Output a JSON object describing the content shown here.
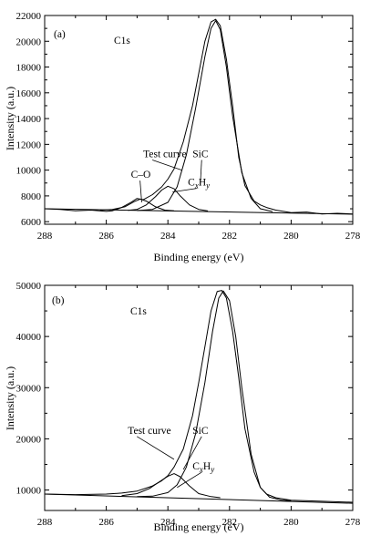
{
  "chart_data": [
    {
      "type": "line",
      "panel_label": "(a)",
      "spectrum_label": "C1s",
      "xlabel": "Binding energy (eV)",
      "ylabel": "Intensity (a.u.)",
      "xlim": [
        288,
        278
      ],
      "x_reversed": true,
      "ylim": [
        5800,
        22000
      ],
      "xticks": [
        288,
        286,
        284,
        282,
        280,
        278
      ],
      "yticks": [
        6000,
        8000,
        10000,
        12000,
        14000,
        16000,
        18000,
        20000,
        22000
      ],
      "grid": false,
      "annotations": [
        {
          "text": "Test curve",
          "x": 284.8,
          "y": 11000,
          "arrow_to": [
            283.55,
            10000
          ]
        },
        {
          "text": "SiC",
          "x": 283.2,
          "y": 11000,
          "arrow_to": [
            282.95,
            8800
          ]
        },
        {
          "text": "C–O",
          "x": 285.2,
          "y": 9400,
          "arrow_to": [
            284.85,
            7500
          ]
        },
        {
          "text": "C",
          "sub1": "x",
          "mid": "H",
          "sub2": "y",
          "x": 283.35,
          "y": 8800,
          "arrow_to": [
            283.85,
            8300
          ]
        }
      ],
      "series": [
        {
          "role": "test curve",
          "x": [
            288,
            287.5,
            287,
            286.5,
            286,
            285.8,
            285.5,
            285.2,
            285,
            284.8,
            284.5,
            284.2,
            284,
            283.8,
            283.5,
            283.2,
            283,
            282.8,
            282.6,
            282.45,
            282.3,
            282.1,
            281.9,
            281.7,
            281.5,
            281.2,
            281,
            280.8,
            280.5,
            280,
            279.5,
            279,
            278.5,
            278
          ],
          "y": [
            7000,
            6950,
            6850,
            6900,
            6800,
            6850,
            7100,
            7500,
            7800,
            7700,
            8100,
            8700,
            9300,
            10100,
            12200,
            15000,
            17500,
            20000,
            21500,
            21700,
            21200,
            18600,
            15000,
            11000,
            8800,
            7600,
            7300,
            7100,
            6900,
            6700,
            6750,
            6600,
            6650,
            6600
          ]
        },
        {
          "role": "baseline",
          "x": [
            288,
            278
          ],
          "y": [
            7000,
            6580
          ]
        },
        {
          "role": "C-O component",
          "x": [
            286.2,
            285.8,
            285.4,
            285.1,
            284.9,
            284.7,
            284.4,
            284.1,
            283.8
          ],
          "y": [
            6900,
            6950,
            7150,
            7550,
            7750,
            7600,
            7150,
            6900,
            6850
          ]
        },
        {
          "role": "CxHy component",
          "x": [
            285.3,
            285,
            284.7,
            284.4,
            284.2,
            284,
            283.8,
            283.6,
            283.3,
            283,
            282.7
          ],
          "y": [
            6880,
            6950,
            7300,
            7950,
            8450,
            8750,
            8550,
            8000,
            7300,
            6950,
            6830
          ]
        },
        {
          "role": "SiC component",
          "x": [
            285,
            284.5,
            284,
            283.7,
            283.4,
            283.1,
            282.8,
            282.6,
            282.45,
            282.3,
            282.1,
            281.9,
            281.6,
            281.3,
            281,
            280.6
          ],
          "y": [
            6860,
            6950,
            7500,
            8700,
            11200,
            14800,
            18800,
            21000,
            21600,
            20900,
            18000,
            14200,
            9800,
            7800,
            7000,
            6780
          ]
        }
      ]
    },
    {
      "type": "line",
      "panel_label": "(b)",
      "spectrum_label": "C1s",
      "xlabel": "Binding energy (eV)",
      "ylabel": "Intensity (a.u.)",
      "xlim": [
        288,
        278
      ],
      "x_reversed": true,
      "ylim": [
        6000,
        50000
      ],
      "xticks": [
        288,
        286,
        284,
        282,
        280,
        278
      ],
      "yticks": [
        10000,
        20000,
        30000,
        40000,
        50000
      ],
      "grid": false,
      "annotations": [
        {
          "text": "Test curve",
          "x": 285.3,
          "y": 21000,
          "arrow_to": [
            283.8,
            16000
          ]
        },
        {
          "text": "SiC",
          "x": 283.2,
          "y": 21000,
          "arrow_to": [
            283.5,
            14000
          ]
        },
        {
          "text": "C",
          "sub1": "x",
          "mid": "H",
          "sub2": "y",
          "x": 283.2,
          "y": 14000,
          "arrow_to": [
            283.7,
            10500
          ]
        }
      ],
      "series": [
        {
          "role": "test curve",
          "x": [
            288,
            287,
            286,
            285.5,
            285,
            284.5,
            284.2,
            284,
            283.8,
            283.5,
            283.2,
            283,
            282.8,
            282.6,
            282.4,
            282.25,
            282.1,
            281.9,
            281.7,
            281.5,
            281.2,
            281,
            280.8,
            280.5,
            280,
            279,
            278
          ],
          "y": [
            9200,
            9100,
            9200,
            9400,
            9800,
            10800,
            11800,
            12800,
            14500,
            18000,
            24500,
            31000,
            38000,
            45000,
            48800,
            49000,
            47500,
            41000,
            32000,
            22000,
            13500,
            10500,
            9200,
            8500,
            8000,
            7800,
            7600
          ]
        },
        {
          "role": "baseline",
          "x": [
            288,
            278
          ],
          "y": [
            9200,
            7400
          ]
        },
        {
          "role": "CxHy component",
          "x": [
            285.5,
            285,
            284.6,
            284.3,
            284,
            283.8,
            283.6,
            283.3,
            283,
            282.6,
            282.3
          ],
          "y": [
            8900,
            9300,
            10300,
            11500,
            12700,
            13200,
            12600,
            10800,
            9300,
            8700,
            8500
          ]
        },
        {
          "role": "SiC component",
          "x": [
            285,
            284.5,
            284,
            283.7,
            283.4,
            283.1,
            282.8,
            282.55,
            282.35,
            282.2,
            282,
            281.8,
            281.6,
            281.3,
            281,
            280.7,
            280.3,
            280
          ],
          "y": [
            8700,
            8800,
            9500,
            11000,
            14500,
            21000,
            31000,
            41000,
            47500,
            48900,
            47000,
            40000,
            30000,
            17000,
            10500,
            8600,
            8000,
            7900
          ]
        }
      ]
    }
  ]
}
